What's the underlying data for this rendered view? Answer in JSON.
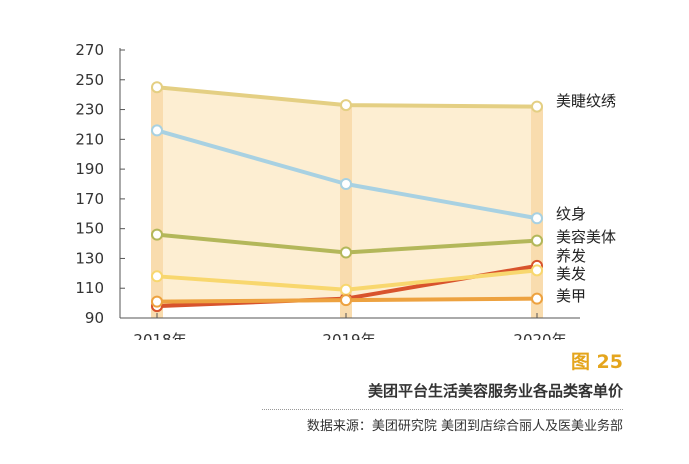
{
  "chart_data": {
    "type": "line",
    "x": [
      "2018年",
      "2019年",
      "2020年"
    ],
    "ylim": [
      90,
      270
    ],
    "yticks": [
      90,
      110,
      130,
      150,
      170,
      190,
      210,
      230,
      250,
      270
    ],
    "series": [
      {
        "name": "美睫纹绣",
        "color": "#e4cf83",
        "values": [
          245,
          233,
          232
        ]
      },
      {
        "name": "纹身",
        "color": "#a8d1e2",
        "values": [
          216,
          180,
          157
        ]
      },
      {
        "name": "美容美体",
        "color": "#b3b75a",
        "values": [
          146,
          134,
          142
        ]
      },
      {
        "name": "养发",
        "color": "#d8532c",
        "values": [
          98,
          103,
          125
        ]
      },
      {
        "name": "美发",
        "color": "#f8d76e",
        "values": [
          118,
          109,
          122
        ]
      },
      {
        "name": "美甲",
        "color": "#eda240",
        "values": [
          101,
          102,
          103
        ]
      }
    ],
    "band_color": "#fdeed2",
    "grid": false
  },
  "figure": {
    "number": "图 25",
    "title": "美团平台生活美容服务业各品类客单价",
    "source": "数据来源：美团研究院  美团到店综合丽人及医美业务部"
  }
}
